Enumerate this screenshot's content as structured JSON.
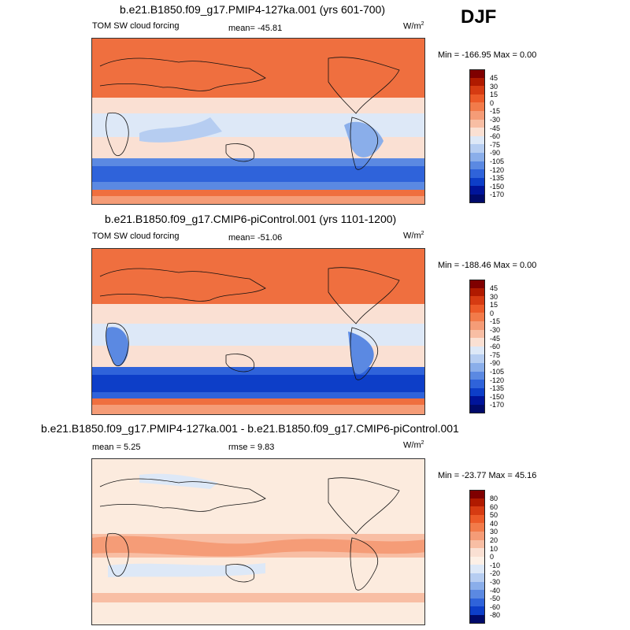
{
  "season": "DJF",
  "panels": [
    {
      "title": "b.e21.B1850.f09_g17.PMIP4-127ka.001 (yrs 601-700)",
      "variable": "TOM SW cloud forcing",
      "stat_left": "",
      "mean_label": "mean= -45.81",
      "units": "W/m",
      "units_sup": "2",
      "minmax": "Min = -166.95 Max =   0.00",
      "palette": "blue",
      "tick_labels": [
        "45",
        "30",
        "15",
        "0",
        "-15",
        "-30",
        "-45",
        "-60",
        "-75",
        "-90",
        "-105",
        "-120",
        "-135",
        "-150",
        "-170"
      ]
    },
    {
      "title": "b.e21.B1850.f09_g17.CMIP6-piControl.001 (yrs 1101-1200)",
      "variable": "TOM SW cloud forcing",
      "stat_left": "",
      "mean_label": "mean= -51.06",
      "units": "W/m",
      "units_sup": "2",
      "minmax": "Min = -188.46 Max =   0.00",
      "palette": "blue",
      "tick_labels": [
        "45",
        "30",
        "15",
        "0",
        "-15",
        "-30",
        "-45",
        "-60",
        "-75",
        "-90",
        "-105",
        "-120",
        "-135",
        "-150",
        "-170"
      ]
    },
    {
      "title": "b.e21.B1850.f09_g17.PMIP4-127ka.001 - b.e21.B1850.f09_g17.CMIP6-piControl.001",
      "variable": "",
      "stat_left": "mean =   5.25",
      "mean_label": "rmse =   9.83",
      "units": "W/m",
      "units_sup": "2",
      "minmax": "Min = -23.77 Max =  45.16",
      "palette": "diff",
      "tick_labels": [
        "80",
        "60",
        "50",
        "40",
        "30",
        "20",
        "10",
        "0",
        "-10",
        "-20",
        "-30",
        "-40",
        "-50",
        "-60",
        "-80"
      ]
    }
  ],
  "colors": {
    "cbar_abs": [
      "#7f0000",
      "#b01a00",
      "#d63b12",
      "#ec5a28",
      "#f27b4a",
      "#f59c77",
      "#f8bea4",
      "#fae0d3",
      "#dde8f7",
      "#b6cdf1",
      "#8aaeea",
      "#5b89e2",
      "#2f63da",
      "#0d3ec8",
      "#00149a",
      "#000a6a"
    ],
    "cbar_diff": [
      "#7f0000",
      "#b01a00",
      "#d63b12",
      "#ec5a28",
      "#f27b4a",
      "#f59c77",
      "#f8bea4",
      "#fae0d3",
      "#fdf0e6",
      "#dde8f7",
      "#b6cdf1",
      "#8aaeea",
      "#5b89e2",
      "#2f63da",
      "#0d3ec8",
      "#000a6a"
    ],
    "land_orange": "#ef6f3f",
    "ocean_light": "#fde3d3",
    "diff_bg": "#fcebde"
  }
}
